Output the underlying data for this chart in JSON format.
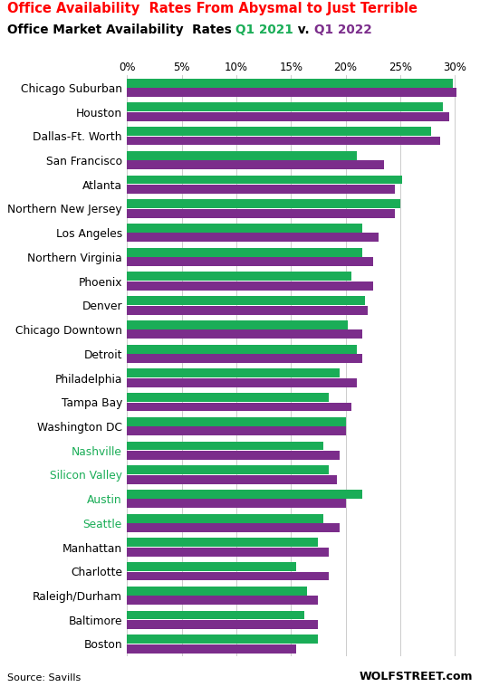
{
  "title1": "Office Availability  Rates From Abysmal to Just Terrible",
  "title2_prefix": "Office Market Availability  Rates ",
  "title2_q1_2021": "Q1 2021",
  "title2_mid": " v. ",
  "title2_q1_2022": "Q1 2022",
  "title1_color": "#FF0000",
  "title2_color": "#000000",
  "q1_2021_color": "#1AAD57",
  "q1_2022_color": "#7B2D8B",
  "source_text": "Source: Savills",
  "watermark": "WOLFSTREET.com",
  "categories": [
    "Chicago Suburban",
    "Houston",
    "Dallas-Ft. Worth",
    "San Francisco",
    "Atlanta",
    "Northern New Jersey",
    "Los Angeles",
    "Northern Virginia",
    "Phoenix",
    "Denver",
    "Chicago Downtown",
    "Detroit",
    "Philadelphia",
    "Tampa Bay",
    "Washington DC",
    "Nashville",
    "Silicon Valley",
    "Austin",
    "Seattle",
    "Manhattan",
    "Charlotte",
    "Raleigh/Durham",
    "Baltimore",
    "Boston"
  ],
  "q1_2021": [
    29.8,
    28.9,
    27.8,
    21.0,
    25.2,
    25.0,
    21.5,
    21.5,
    20.5,
    21.8,
    20.2,
    21.0,
    19.5,
    18.5,
    20.0,
    18.0,
    18.5,
    21.5,
    18.0,
    17.5,
    15.5,
    16.5,
    16.2,
    17.5
  ],
  "q1_2022": [
    30.2,
    29.5,
    28.7,
    23.5,
    24.5,
    24.5,
    23.0,
    22.5,
    22.5,
    22.0,
    21.5,
    21.5,
    21.0,
    20.5,
    20.0,
    19.5,
    19.2,
    20.0,
    19.5,
    18.5,
    18.5,
    17.5,
    17.5,
    15.5
  ],
  "color_2021": "#1AAD57",
  "color_2022": "#7B2D8B",
  "bg_color": "#FFFFFF",
  "xlim_max": 31,
  "xtick_values": [
    0,
    5,
    10,
    15,
    20,
    25,
    30
  ],
  "xtick_labels": [
    "0%",
    "5%",
    "10%",
    "15%",
    "20%",
    "25%",
    "30%"
  ],
  "label_colors": {
    "Nashville": "#1AAD57",
    "Silicon Valley": "#1AAD57",
    "Austin": "#1AAD57",
    "Seattle": "#1AAD57",
    "Manhattan": "#000000",
    "Charlotte": "#000000",
    "Raleigh/Durham": "#000000",
    "Baltimore": "#000000",
    "Boston": "#000000",
    "Chicago Suburban": "#000000",
    "Houston": "#000000",
    "Dallas-Ft. Worth": "#000000",
    "San Francisco": "#000000",
    "Atlanta": "#000000",
    "Northern New Jersey": "#000000",
    "Los Angeles": "#000000",
    "Northern Virginia": "#000000",
    "Phoenix": "#000000",
    "Denver": "#000000",
    "Chicago Downtown": "#000000",
    "Detroit": "#000000",
    "Philadelphia": "#000000",
    "Tampa Bay": "#000000",
    "Washington DC": "#000000"
  }
}
